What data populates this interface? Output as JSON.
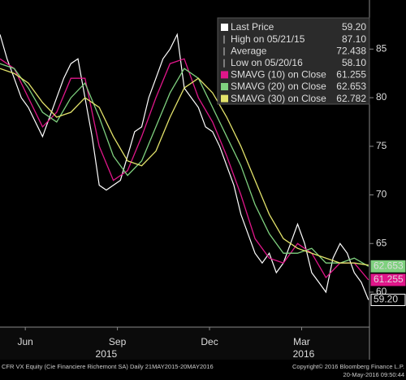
{
  "chart_data": {
    "type": "line",
    "xlim": [
      0,
      365
    ],
    "xticks": [
      {
        "value": 25,
        "label": "Jun"
      },
      {
        "value": 116,
        "label": "Sep"
      },
      {
        "value": 207,
        "label": "Dec"
      },
      {
        "value": 298,
        "label": "Mar"
      }
    ],
    "year_labels": [
      {
        "value": 105,
        "label": "2015"
      },
      {
        "value": 300,
        "label": "2016"
      }
    ],
    "ylim": [
      56.4,
      90.05
    ],
    "yticks": [
      60,
      65,
      70,
      75,
      80,
      85
    ],
    "series": [
      {
        "name": "Last Price",
        "color": "#ffffff",
        "x": [
          0,
          7,
          14,
          21,
          28,
          35,
          42,
          49,
          56,
          63,
          70,
          77,
          84,
          91,
          98,
          105,
          112,
          119,
          126,
          133,
          140,
          147,
          154,
          161,
          168,
          175,
          182,
          189,
          196,
          203,
          210,
          217,
          224,
          231,
          238,
          245,
          252,
          259,
          266,
          273,
          280,
          287,
          294,
          301,
          308,
          315,
          322,
          329,
          336,
          343,
          350,
          357,
          364
        ],
        "values": [
          86.5,
          84,
          82,
          80,
          79,
          77.5,
          76,
          78,
          80,
          82,
          83.5,
          84,
          80,
          76,
          71,
          70.5,
          71,
          71.5,
          74,
          76.5,
          77,
          80,
          82,
          84,
          85,
          86.5,
          81,
          80,
          79,
          77,
          76.5,
          75,
          73,
          71,
          68,
          66,
          64,
          63,
          64,
          62,
          63,
          65,
          67,
          65,
          62,
          61,
          60,
          63.5,
          65,
          64,
          62,
          61,
          59.2
        ]
      },
      {
        "name": "SMAVG (10) on Close",
        "color": "#e0168a",
        "x": [
          0,
          14,
          28,
          42,
          56,
          70,
          84,
          98,
          112,
          126,
          140,
          154,
          168,
          182,
          196,
          210,
          224,
          238,
          252,
          266,
          280,
          294,
          308,
          322,
          336,
          350,
          364
        ],
        "values": [
          84,
          83,
          80,
          77,
          78.5,
          82,
          82,
          75,
          71.5,
          72.5,
          76,
          80,
          83.5,
          84,
          80,
          77.5,
          74,
          70,
          65.5,
          63.5,
          63,
          65,
          64,
          61.5,
          63,
          63,
          61.255
        ]
      },
      {
        "name": "SMAVG (20) on Close",
        "color": "#7fd17f",
        "x": [
          0,
          14,
          28,
          42,
          56,
          70,
          84,
          98,
          112,
          126,
          140,
          154,
          168,
          182,
          196,
          210,
          224,
          238,
          252,
          266,
          280,
          294,
          308,
          322,
          336,
          350,
          364
        ],
        "values": [
          83.5,
          83,
          81,
          78.5,
          77.5,
          80,
          81.5,
          78,
          74,
          72,
          73.5,
          77,
          80.5,
          83,
          82,
          79,
          76,
          73,
          69,
          66,
          64,
          64,
          64.5,
          63,
          63,
          63.5,
          62.653
        ]
      },
      {
        "name": "SMAVG (30) on Close",
        "color": "#e3e36b",
        "x": [
          0,
          14,
          28,
          42,
          56,
          70,
          84,
          98,
          112,
          126,
          140,
          154,
          168,
          182,
          196,
          210,
          224,
          238,
          252,
          266,
          280,
          294,
          308,
          322,
          336,
          350,
          364
        ],
        "values": [
          83,
          82.5,
          81.5,
          79.5,
          78,
          78.5,
          80,
          79,
          76,
          73.5,
          73,
          74.5,
          78,
          81,
          82,
          80.5,
          78,
          75,
          71.5,
          68,
          65.5,
          64.5,
          64,
          63.5,
          63,
          63,
          62.782
        ]
      }
    ],
    "legend": [
      {
        "name": "Last Price",
        "value": 59.2,
        "label": "59.20",
        "color": "#ffffff"
      },
      {
        "name": "High on 05/21/15",
        "value": 87.1,
        "label": "87.10"
      },
      {
        "name": "Average",
        "value": 72.438,
        "label": "72.438"
      },
      {
        "name": "Low on 05/20/16",
        "value": 58.1,
        "label": "58.10"
      },
      {
        "name": "SMAVG (10) on Close",
        "value": 61.255,
        "label": "61.255",
        "color": "#e0168a"
      },
      {
        "name": "SMAVG (20) on Close",
        "value": 62.653,
        "label": "62.653",
        "color": "#7fd17f"
      },
      {
        "name": "SMAVG (30) on Close",
        "value": 62.782,
        "label": "62.782",
        "color": "#e3e36b"
      }
    ],
    "footer_left": "CFR VX Equity (Cie Financiere Richemont SA)  Daily 21MAY2015-20MAY2016",
    "footer_right": "Copyright© 2016 Bloomberg Finance L.P.",
    "footer_timestamp": "20-May-2016 09:50:44"
  }
}
